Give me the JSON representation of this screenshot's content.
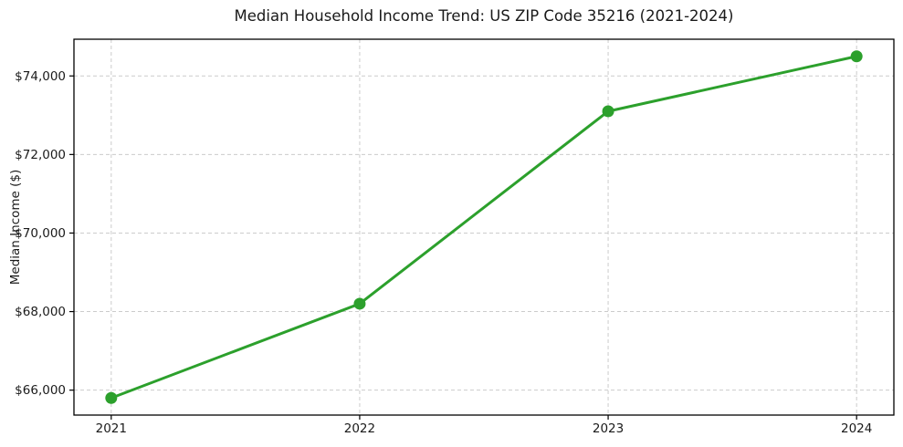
{
  "title": "Median Household Income Trend: US ZIP Code 35216 (2021-2024)",
  "chart_data": {
    "type": "line",
    "title": "Median Household Income Trend: US ZIP Code 35216 (2021-2024)",
    "categories": [
      "2021",
      "2022",
      "2023",
      "2024"
    ],
    "series": [
      {
        "name": "Median Household Income",
        "values": [
          65800,
          68200,
          73100,
          74500
        ]
      }
    ],
    "xlabel": "",
    "ylabel": "Median Income ($)",
    "ylim": [
      65365,
      74935
    ],
    "yticks": [
      66000,
      68000,
      70000,
      72000,
      74000
    ],
    "ytick_labels": [
      "$66,000",
      "$68,000",
      "$70,000",
      "$72,000",
      "$74,000"
    ],
    "grid": true,
    "grid_style": "dashed",
    "legend": false,
    "colors": {
      "line": "#2ca02c",
      "marker": "#2ca02c",
      "grid": "#cccccc",
      "spine": "#000000",
      "text": "#1a1a1a",
      "background": "#ffffff"
    }
  }
}
